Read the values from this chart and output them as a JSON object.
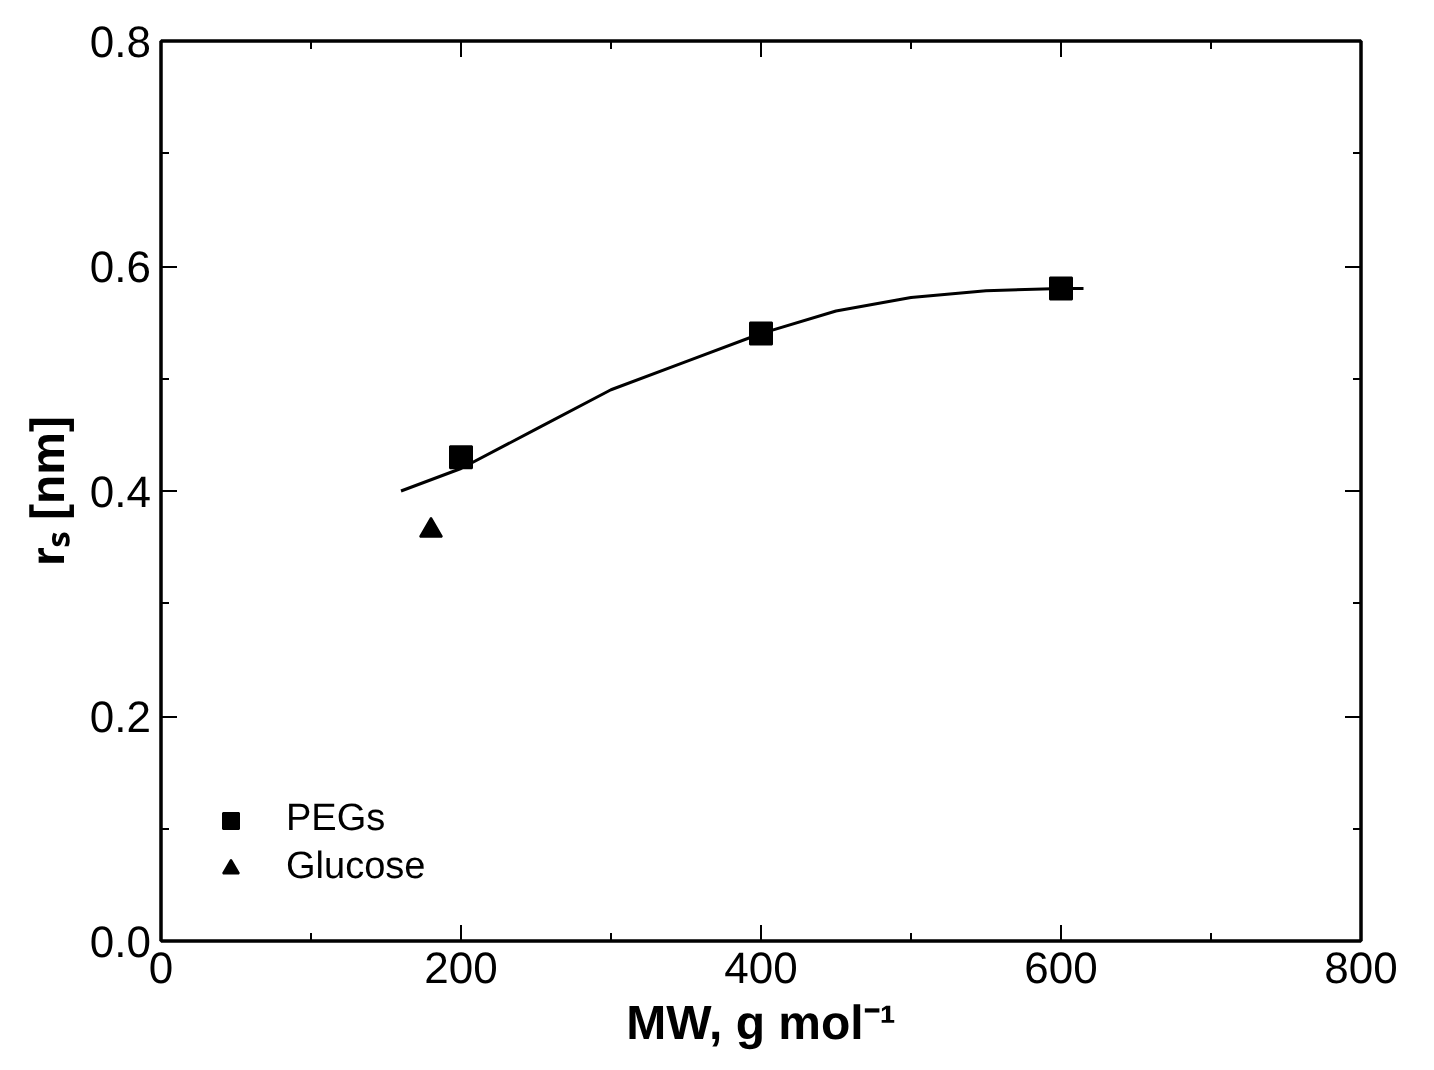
{
  "chart_data": {
    "type": "scatter",
    "xlabel": "MW, g mol⁻¹",
    "ylabel": "rₛ [nm]",
    "xlim": [
      0,
      800
    ],
    "xticks": [
      0,
      200,
      400,
      600,
      800,
      {
        "value": 100,
        "label": null
      },
      {
        "value": 300,
        "label": null
      },
      {
        "value": 500,
        "label": null
      },
      {
        "value": 700,
        "label": null
      }
    ],
    "ylim": [
      0,
      0.8
    ],
    "yticks": [
      {
        "value": 0,
        "label": "0.0"
      },
      {
        "value": 0.2,
        "label": "0.2"
      },
      {
        "value": 0.4,
        "label": "0.4"
      },
      {
        "value": 0.6,
        "label": "0.6"
      },
      {
        "value": 0.8,
        "label": "0.8"
      },
      {
        "value": 0.1,
        "label": null
      },
      {
        "value": 0.3,
        "label": null
      },
      {
        "value": 0.5,
        "label": null
      },
      {
        "value": 0.7,
        "label": null
      }
    ],
    "legend": "bottom left",
    "grid": false,
    "series": [
      {
        "name": "PEGs",
        "color": "#000000",
        "marker": "square",
        "x": [
          200,
          400,
          600
        ],
        "values": [
          0.43,
          0.54,
          0.58
        ]
      },
      {
        "name": "Glucose",
        "color": "#000000",
        "marker": "triangle",
        "x": [
          180
        ],
        "values": [
          0.365
        ]
      },
      {
        "type": "line",
        "color": "#000000",
        "marker": "none",
        "line_style": "solid",
        "x": [
          160,
          200,
          250,
          300,
          350,
          400,
          450,
          500,
          550,
          600,
          615
        ],
        "values": [
          0.4,
          0.42,
          0.455,
          0.49,
          0.515,
          0.54,
          0.56,
          0.572,
          0.578,
          0.58,
          0.58
        ]
      }
    ]
  }
}
